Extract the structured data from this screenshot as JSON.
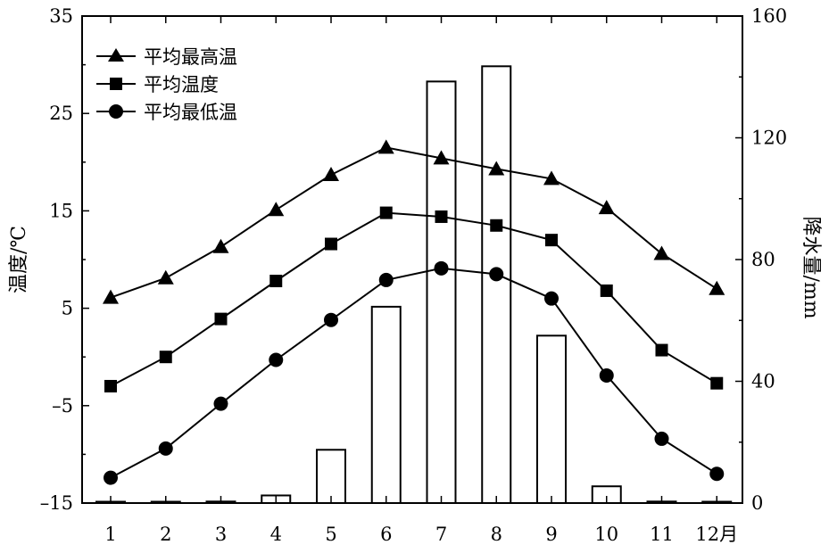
{
  "chart_data": {
    "type": "bar+line",
    "categories": [
      "1",
      "2",
      "3",
      "4",
      "5",
      "6",
      "7",
      "8",
      "9",
      "10",
      "11",
      "12月"
    ],
    "bars": {
      "axis": "right",
      "values": [
        0.2,
        0,
        0.5,
        2.5,
        17.5,
        64.5,
        138.5,
        143.5,
        55,
        5.5,
        0.5,
        0
      ]
    },
    "series": [
      {
        "name": "平均最高温",
        "marker": "triangle",
        "axis": "left",
        "values": [
          6.1,
          8.1,
          11.3,
          15.1,
          18.7,
          21.5,
          20.4,
          19.3,
          18.3,
          15.3,
          10.6,
          7.0
        ]
      },
      {
        "name": "平均温度",
        "marker": "square",
        "axis": "left",
        "values": [
          -3.0,
          0.0,
          3.9,
          7.8,
          11.6,
          14.8,
          14.4,
          13.5,
          12.0,
          6.8,
          0.7,
          -2.7
        ]
      },
      {
        "name": "平均最低温",
        "marker": "circle",
        "axis": "left",
        "values": [
          -12.4,
          -9.4,
          -4.8,
          -0.3,
          3.8,
          7.9,
          9.1,
          8.5,
          6.0,
          -1.9,
          -8.4,
          -12.0
        ]
      }
    ],
    "yleft": {
      "label": "温度/℃",
      "min": -15,
      "max": 35,
      "ticks": [
        "35",
        "25",
        "15",
        "5",
        "–5",
        "–15"
      ]
    },
    "yright": {
      "label": "降水量/mm",
      "min": 0,
      "max": 160,
      "ticks": [
        "160",
        "120",
        "80",
        "40",
        "0"
      ]
    },
    "legend_position": "top-left",
    "grid": false
  }
}
